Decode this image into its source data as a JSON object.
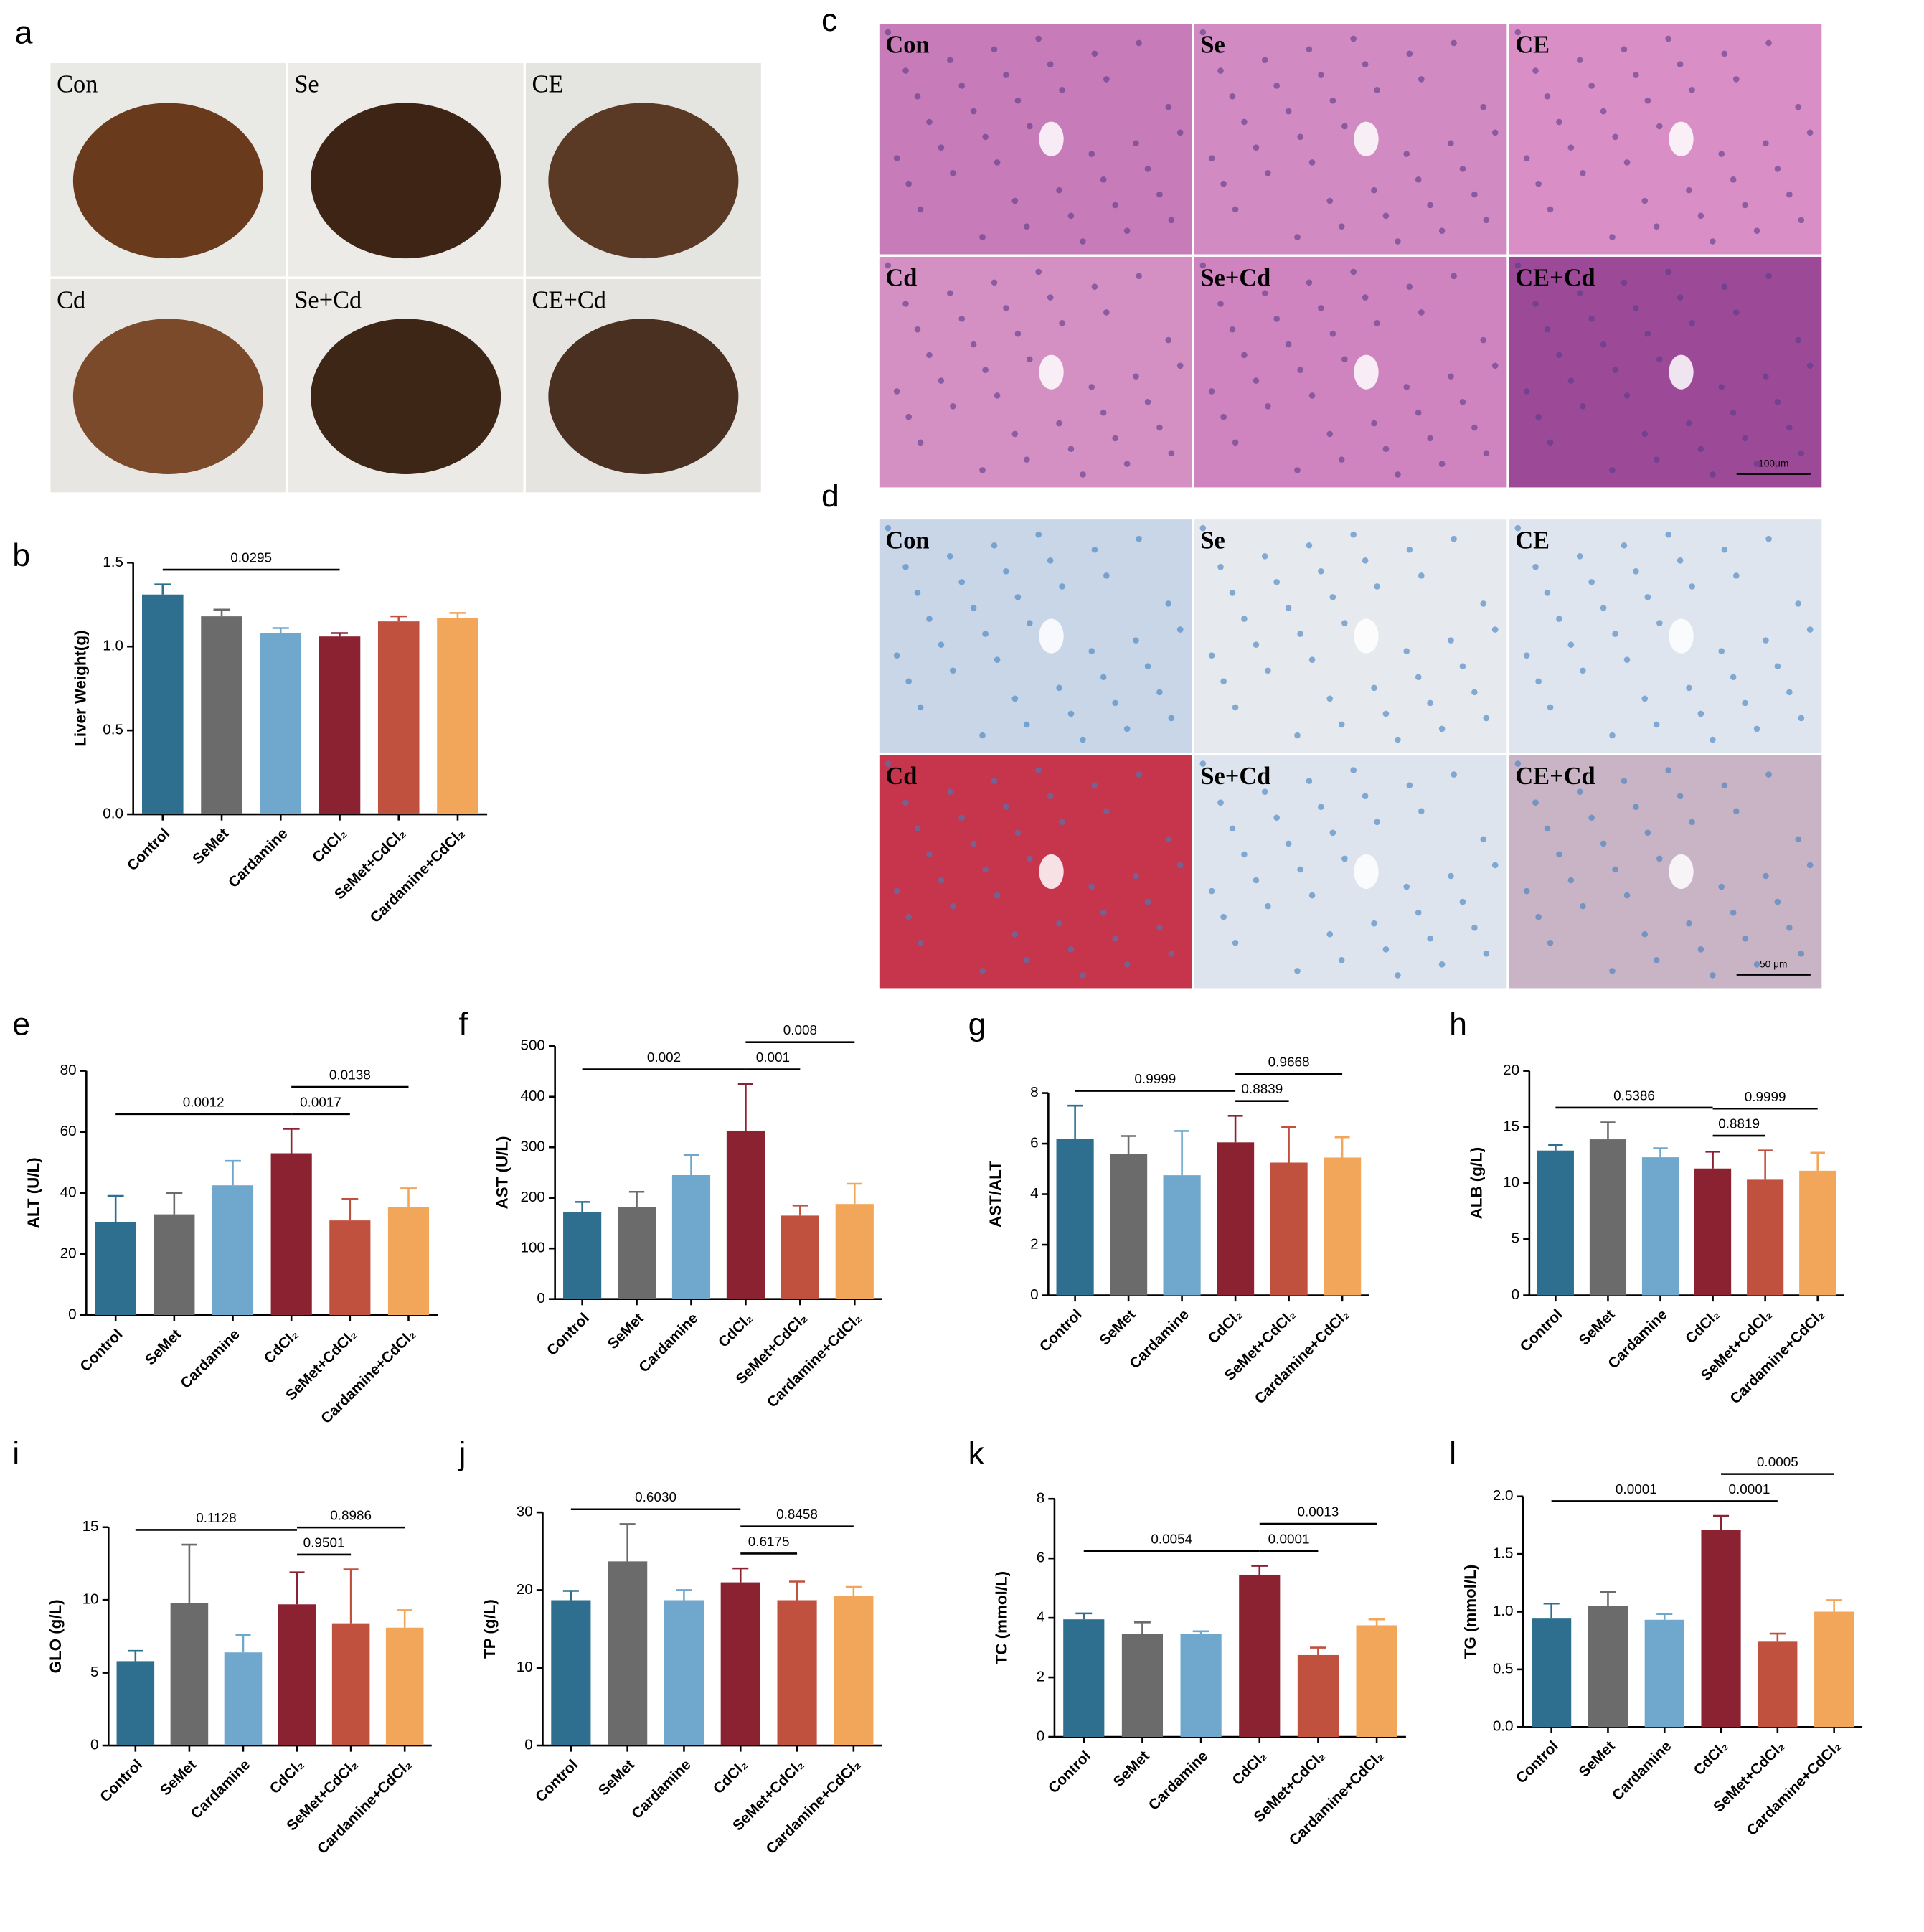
{
  "chart_data": [
    {
      "type": "bar",
      "panel": "b",
      "ylabel": "Liver Weight(g)",
      "categories": [
        "Control",
        "SeMet",
        "Cardamine",
        "CdCl₂",
        "SeMet+CdCl₂",
        "Cardamine+CdCl₂"
      ],
      "colors": [
        "#2e6e8e",
        "#6b6b6b",
        "#6fa8cc",
        "#8b2232",
        "#c0513f",
        "#f2a65a"
      ],
      "values": [
        1.31,
        1.18,
        1.08,
        1.06,
        1.15,
        1.17
      ],
      "errors": [
        0.06,
        0.04,
        0.03,
        0.02,
        0.03,
        0.03
      ],
      "ylim": [
        0,
        1.5
      ],
      "yticks": [
        {
          "value": 0,
          "label": "0.0"
        },
        0.5,
        {
          "value": 1,
          "label": "1.0"
        },
        1.5
      ],
      "comparisons": [
        {
          "between": [
            0,
            3
          ],
          "label": "0.0295"
        }
      ]
    },
    {
      "type": "bar",
      "panel": "e",
      "ylabel": "ALT (U/L)",
      "categories": [
        "Control",
        "SeMet",
        "Cardamine",
        "CdCl₂",
        "SeMet+CdCl₂",
        "Cardamine+CdCl₂"
      ],
      "colors": [
        "#2e6e8e",
        "#6b6b6b",
        "#6fa8cc",
        "#8b2232",
        "#c0513f",
        "#f2a65a"
      ],
      "values": [
        30.5,
        33,
        42.5,
        53,
        31,
        35.5
      ],
      "errors": [
        8.5,
        7,
        8,
        8,
        7,
        6
      ],
      "ylim": [
        0,
        80
      ],
      "yticks": [
        0,
        20,
        40,
        60,
        80
      ],
      "comparisons": [
        {
          "between": [
            0,
            3
          ],
          "label": "0.0012"
        },
        {
          "between": [
            3,
            4
          ],
          "label": "0.0017"
        },
        {
          "between": [
            3,
            5
          ],
          "label": "0.0138"
        }
      ]
    },
    {
      "type": "bar",
      "panel": "f",
      "ylabel": "AST (U/L)",
      "categories": [
        "Control",
        "SeMet",
        "Cardamine",
        "CdCl₂",
        "SeMet+CdCl₂",
        "Cardamine+CdCl₂"
      ],
      "colors": [
        "#2e6e8e",
        "#6b6b6b",
        "#6fa8cc",
        "#8b2232",
        "#c0513f",
        "#f2a65a"
      ],
      "values": [
        172,
        182,
        245,
        333,
        165,
        188
      ],
      "errors": [
        20,
        30,
        40,
        92,
        20,
        40
      ],
      "ylim": [
        0,
        500
      ],
      "yticks": [
        0,
        100,
        200,
        300,
        400,
        500
      ],
      "comparisons": [
        {
          "between": [
            0,
            3
          ],
          "label": "0.002"
        },
        {
          "between": [
            3,
            4
          ],
          "label": "0.001"
        },
        {
          "between": [
            3,
            5
          ],
          "label": "0.008"
        }
      ]
    },
    {
      "type": "bar",
      "panel": "g",
      "ylabel": "AST/ALT",
      "categories": [
        "Control",
        "SeMet",
        "Cardamine",
        "CdCl₂",
        "SeMet+CdCl₂",
        "Cardamine+CdCl₂"
      ],
      "colors": [
        "#2e6e8e",
        "#6b6b6b",
        "#6fa8cc",
        "#8b2232",
        "#c0513f",
        "#f2a65a"
      ],
      "values": [
        6.2,
        5.6,
        4.75,
        6.05,
        5.25,
        5.45
      ],
      "errors": [
        1.3,
        0.7,
        1.75,
        1.05,
        1.4,
        0.8
      ],
      "ylim": [
        0,
        8
      ],
      "yticks": [
        0,
        2,
        4,
        6,
        8
      ],
      "comparisons": [
        {
          "between": [
            0,
            3
          ],
          "label": "0.9999"
        },
        {
          "between": [
            3,
            4
          ],
          "label": "0.8839"
        },
        {
          "between": [
            3,
            5
          ],
          "label": "0.9668"
        }
      ]
    },
    {
      "type": "bar",
      "panel": "h",
      "ylabel": "ALB (g/L)",
      "categories": [
        "Control",
        "SeMet",
        "Cardamine",
        "CdCl₂",
        "SeMet+CdCl₂",
        "Cardamine+CdCl₂"
      ],
      "colors": [
        "#2e6e8e",
        "#6b6b6b",
        "#6fa8cc",
        "#8b2232",
        "#c0513f",
        "#f2a65a"
      ],
      "values": [
        12.9,
        13.9,
        12.3,
        11.3,
        10.3,
        11.1
      ],
      "errors": [
        0.5,
        1.5,
        0.8,
        1.5,
        2.6,
        1.6
      ],
      "ylim": [
        0,
        20
      ],
      "yticks": [
        0,
        5,
        10,
        15,
        20
      ],
      "comparisons": [
        {
          "between": [
            0,
            3
          ],
          "label": "0.5386"
        },
        {
          "between": [
            3,
            4
          ],
          "label": "0.8819"
        },
        {
          "between": [
            3,
            5
          ],
          "label": "0.9999"
        }
      ]
    },
    {
      "type": "bar",
      "panel": "i",
      "ylabel": "GLO (g/L)",
      "categories": [
        "Control",
        "SeMet",
        "Cardamine",
        "CdCl₂",
        "SeMet+CdCl₂",
        "Cardamine+CdCl₂"
      ],
      "colors": [
        "#2e6e8e",
        "#6b6b6b",
        "#6fa8cc",
        "#8b2232",
        "#c0513f",
        "#f2a65a"
      ],
      "values": [
        5.8,
        9.8,
        6.4,
        9.7,
        8.4,
        8.1
      ],
      "errors": [
        0.7,
        4,
        1.2,
        2.2,
        3.7,
        1.2
      ],
      "ylim": [
        0,
        15
      ],
      "yticks": [
        0,
        5,
        10,
        15
      ],
      "comparisons": [
        {
          "between": [
            0,
            3
          ],
          "label": "0.1128"
        },
        {
          "between": [
            3,
            4
          ],
          "label": "0.9501"
        },
        {
          "between": [
            3,
            5
          ],
          "label": "0.8986"
        }
      ]
    },
    {
      "type": "bar",
      "panel": "j",
      "ylabel": "TP (g/L)",
      "categories": [
        "Control",
        "SeMet",
        "Cardamine",
        "CdCl₂",
        "SeMet+CdCl₂",
        "Cardamine+CdCl₂"
      ],
      "colors": [
        "#2e6e8e",
        "#6b6b6b",
        "#6fa8cc",
        "#8b2232",
        "#c0513f",
        "#f2a65a"
      ],
      "values": [
        18.7,
        23.7,
        18.7,
        21,
        18.7,
        19.3
      ],
      "errors": [
        1.2,
        4.8,
        1.3,
        1.8,
        2.4,
        1.1
      ],
      "ylim": [
        0,
        30
      ],
      "yticks": [
        0,
        10,
        20,
        30
      ],
      "comparisons": [
        {
          "between": [
            0,
            3
          ],
          "label": "0.6030"
        },
        {
          "between": [
            3,
            4
          ],
          "label": "0.6175"
        },
        {
          "between": [
            3,
            5
          ],
          "label": "0.8458"
        }
      ]
    },
    {
      "type": "bar",
      "panel": "k",
      "ylabel": "TC (mmol/L)",
      "categories": [
        "Control",
        "SeMet",
        "Cardamine",
        "CdCl₂",
        "SeMet+CdCl₂",
        "Cardamine+CdCl₂"
      ],
      "colors": [
        "#2e6e8e",
        "#6b6b6b",
        "#6fa8cc",
        "#8b2232",
        "#c0513f",
        "#f2a65a"
      ],
      "values": [
        3.95,
        3.45,
        3.45,
        5.45,
        2.75,
        3.75
      ],
      "errors": [
        0.2,
        0.4,
        0.1,
        0.3,
        0.25,
        0.2
      ],
      "ylim": [
        0,
        8
      ],
      "yticks": [
        0,
        2,
        4,
        6,
        8
      ],
      "comparisons": [
        {
          "between": [
            0,
            3
          ],
          "label": "0.0054"
        },
        {
          "between": [
            3,
            4
          ],
          "label": "0.0001"
        },
        {
          "between": [
            3,
            5
          ],
          "label": "0.0013"
        }
      ]
    },
    {
      "type": "bar",
      "panel": "l",
      "ylabel": "TG (mmol/L)",
      "categories": [
        "Control",
        "SeMet",
        "Cardamine",
        "CdCl₂",
        "SeMet+CdCl₂",
        "Cardamine+CdCl₂"
      ],
      "colors": [
        "#2e6e8e",
        "#6b6b6b",
        "#6fa8cc",
        "#8b2232",
        "#c0513f",
        "#f2a65a"
      ],
      "values": [
        0.94,
        1.05,
        0.93,
        1.71,
        0.74,
        1.0
      ],
      "errors": [
        0.13,
        0.12,
        0.05,
        0.12,
        0.07,
        0.1
      ],
      "ylim": [
        0,
        2
      ],
      "yticks": [
        {
          "value": 0,
          "label": "0.0"
        },
        0.5,
        {
          "value": 1,
          "label": "1.0"
        },
        1.5,
        {
          "value": 2,
          "label": "2.0"
        }
      ],
      "comparisons": [
        {
          "between": [
            0,
            3
          ],
          "label": "0.0001"
        },
        {
          "between": [
            3,
            4
          ],
          "label": "0.0001"
        },
        {
          "between": [
            3,
            5
          ],
          "label": "0.0005"
        }
      ]
    }
  ],
  "photo_panels": [
    {
      "panel": "a",
      "labels": [
        "Con",
        "Se",
        "CE",
        "Cd",
        "Se+Cd",
        "CE+Cd"
      ]
    },
    {
      "panel": "c",
      "labels": [
        "Con",
        "Se",
        "CE",
        "Cd",
        "Se+Cd",
        "CE+Cd"
      ],
      "scale_bar": "100μm"
    },
    {
      "panel": "d",
      "labels": [
        "Con",
        "Se",
        "CE",
        "Cd",
        "Se+Cd",
        "CE+Cd"
      ],
      "scale_bar": "50 μm"
    }
  ]
}
